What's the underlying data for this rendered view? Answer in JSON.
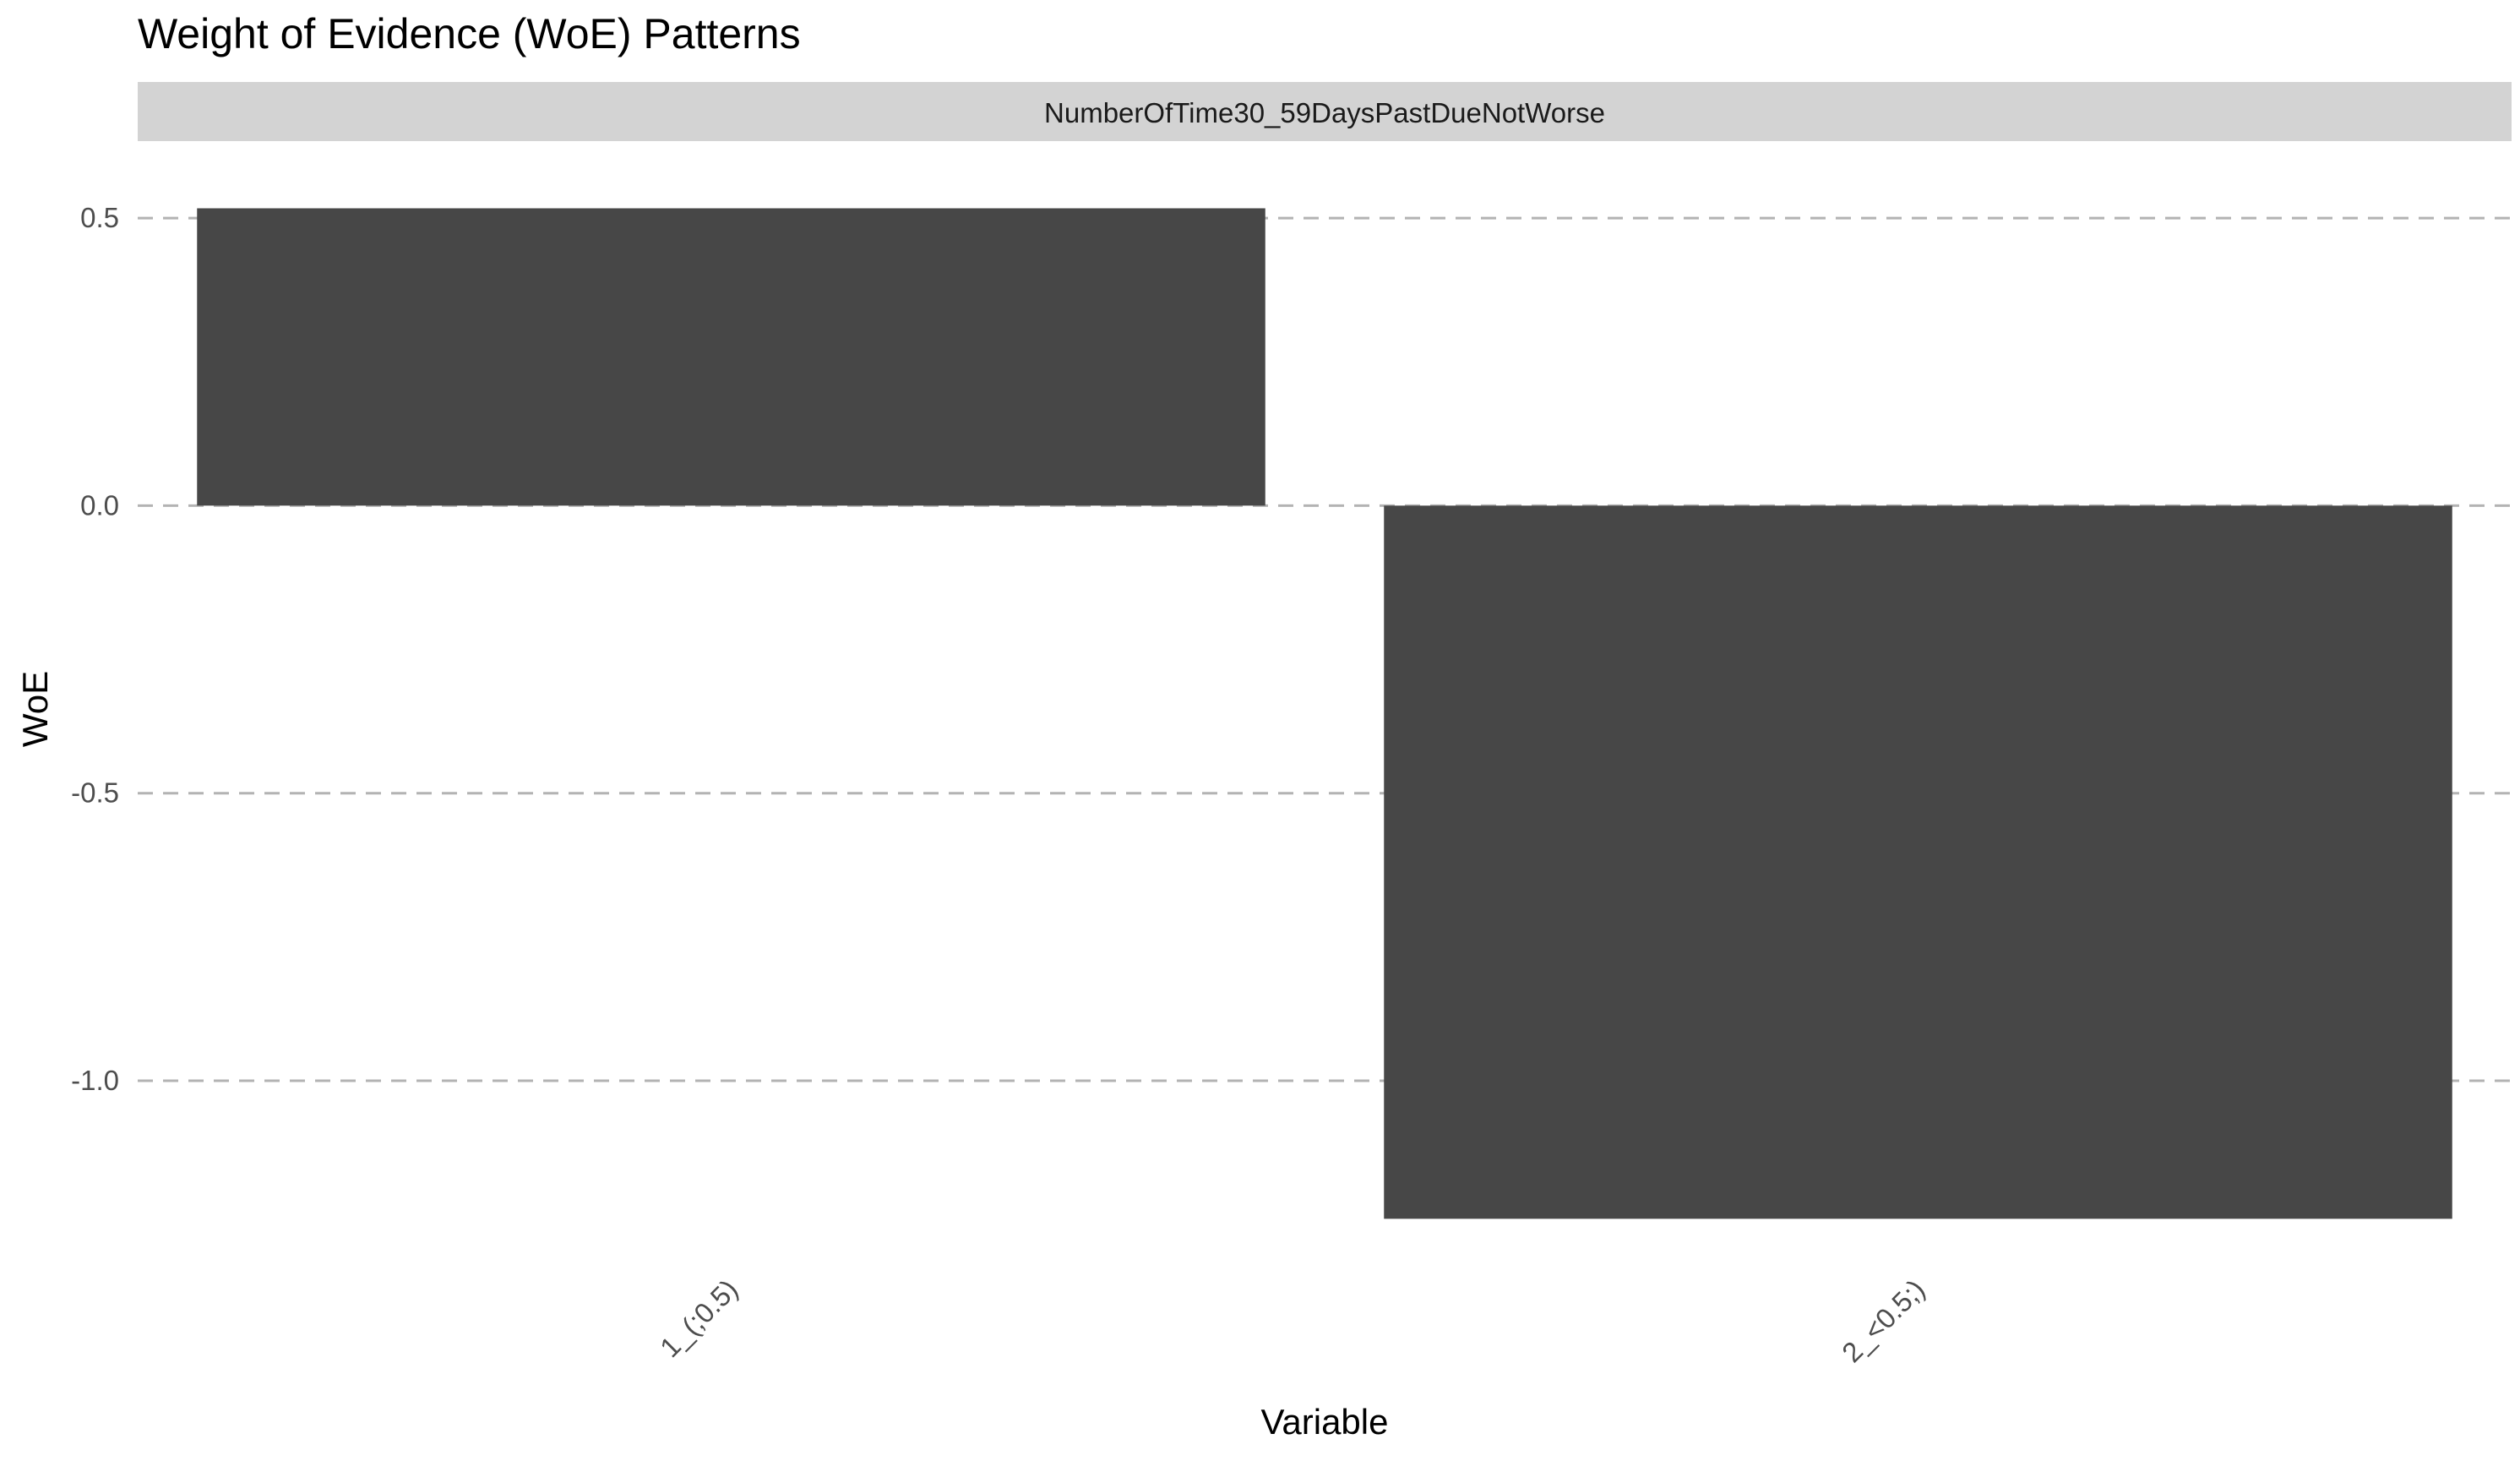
{
  "chart_data": {
    "type": "bar",
    "title": "Weight of Evidence (WoE) Patterns",
    "facet_label": "NumberOfTime30_59DaysPastDueNotWorse",
    "xlabel": "Variable",
    "ylabel": "WoE",
    "categories": [
      "1_(;0.5)",
      "2_<0.5;)"
    ],
    "values": [
      0.517,
      -1.24
    ],
    "ylim": [
      -1.31,
      0.6
    ],
    "yticks": [
      0.5,
      0.0,
      -0.5,
      -1.0
    ],
    "ytick_labels": [
      "0.5",
      "0.0",
      "-0.5",
      "-1.0"
    ],
    "grid": true,
    "legend": "none",
    "colors": {
      "bar": "#474747",
      "grid": "#b3b3b3",
      "strip": "#d3d3d3",
      "text": "#000000",
      "tick_text": "#4d4d4d"
    }
  }
}
